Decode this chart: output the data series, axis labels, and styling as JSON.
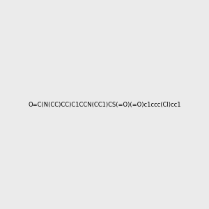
{
  "smiles": "O=C(N(CC)CC)C1CCN(CC1)CS(=O)(=O)c1ccc(Cl)cc1",
  "title": "",
  "bg_color": "#ebebeb",
  "img_size": [
    300,
    300
  ],
  "atom_colors": {
    "N": "#0000ff",
    "O": "#ff0000",
    "S": "#cccc00",
    "Cl": "#00aa00",
    "C": "#000000"
  }
}
